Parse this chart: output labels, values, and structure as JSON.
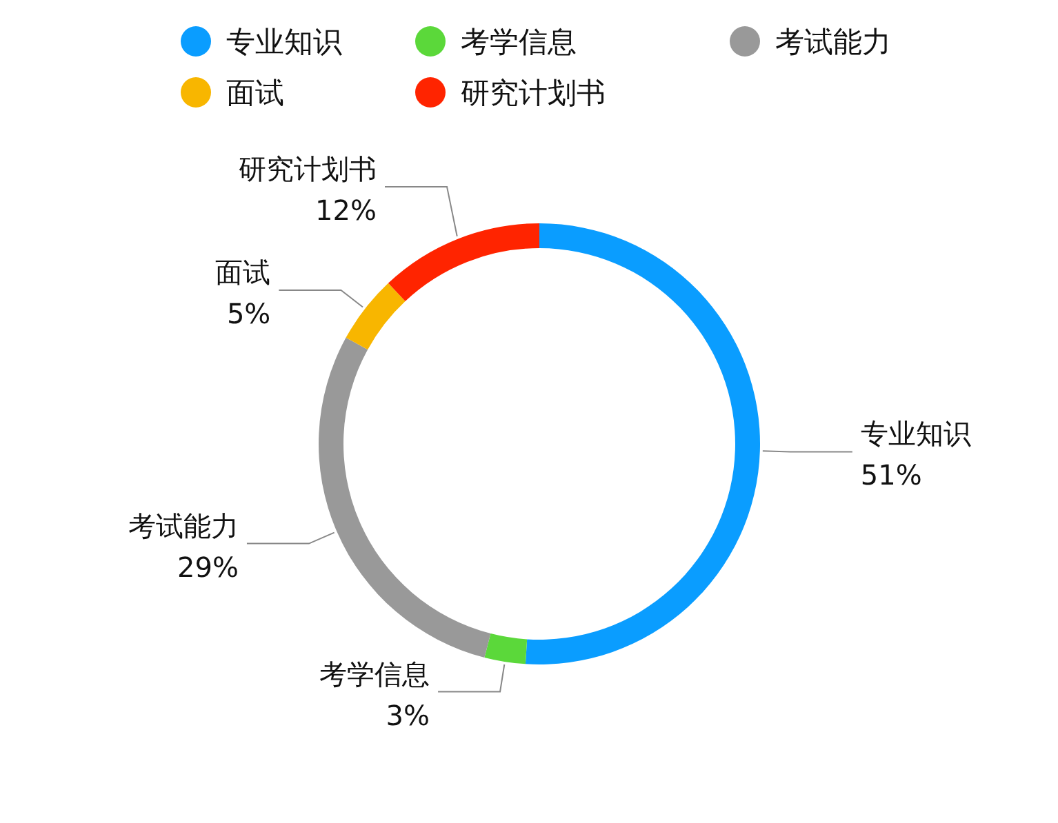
{
  "chart_data": {
    "type": "donut",
    "categories": [
      "专业知识",
      "考学信息",
      "考试能力",
      "面试",
      "研究计划书"
    ],
    "values": [
      51,
      3,
      29,
      5,
      12
    ],
    "value_labels": [
      "51%",
      "3%",
      "29%",
      "5%",
      "12%"
    ],
    "colors": [
      "#0a9dff",
      "#5bd83a",
      "#999999",
      "#f8b600",
      "#ff2400"
    ],
    "legend": "top"
  }
}
